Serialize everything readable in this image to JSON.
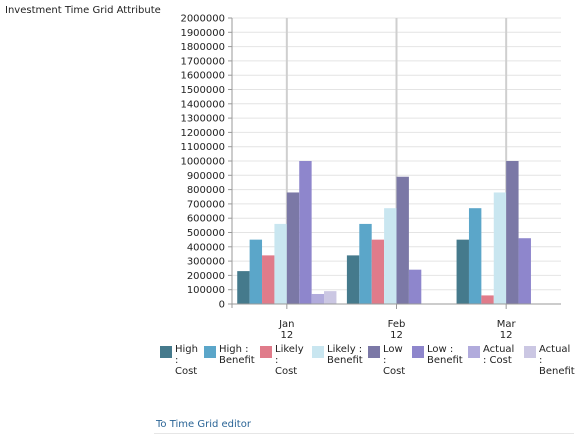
{
  "page": {
    "title": "Investment Time Grid Attribute",
    "link_label": "To Time Grid editor"
  },
  "chart_data": {
    "type": "bar",
    "categories": [
      "Jan 12",
      "Feb 12",
      "Mar 12"
    ],
    "category_labels": [
      {
        "month": "Jan",
        "year": "12"
      },
      {
        "month": "Feb",
        "year": "12"
      },
      {
        "month": "Mar",
        "year": "12"
      }
    ],
    "ylim": [
      0,
      2000000
    ],
    "ytick_step": 100000,
    "ytick_labels": [
      "0",
      "100000",
      "200000",
      "300000",
      "400000",
      "500000",
      "600000",
      "700000",
      "800000",
      "900000",
      "1000000",
      "1100000",
      "1200000",
      "1300000",
      "1400000",
      "1500000",
      "1600000",
      "1700000",
      "1800000",
      "1900000",
      "2000000"
    ],
    "grid": true,
    "legend_position": "bottom",
    "series": [
      {
        "name": "High : Cost",
        "legend_lines": [
          "High",
          ":",
          "Cost"
        ],
        "color": "#457a8c",
        "values": [
          230000,
          340000,
          450000
        ]
      },
      {
        "name": "High : Benefit",
        "legend_lines": [
          "High :",
          "Benefit"
        ],
        "color": "#5ba6c9",
        "values": [
          450000,
          560000,
          670000
        ]
      },
      {
        "name": "Likely : Cost",
        "legend_lines": [
          "Likely",
          ": Cost"
        ],
        "color": "#e07b8a",
        "values": [
          340000,
          450000,
          60000
        ]
      },
      {
        "name": "Likely : Benefit",
        "legend_lines": [
          "Likely :",
          "Benefit"
        ],
        "color": "#c9e6f0",
        "values": [
          560000,
          670000,
          780000
        ]
      },
      {
        "name": "Low : Cost",
        "legend_lines": [
          "Low",
          ":",
          "Cost"
        ],
        "color": "#7b78a6",
        "values": [
          780000,
          890000,
          1000000
        ]
      },
      {
        "name": "Low : Benefit",
        "legend_lines": [
          "Low :",
          "Benefit"
        ],
        "color": "#8e86cc",
        "values": [
          1000000,
          240000,
          460000
        ]
      },
      {
        "name": "Actual : Cost",
        "legend_lines": [
          "Actual",
          ": Cost"
        ],
        "color": "#b1abdc",
        "values": [
          70000,
          0,
          0
        ]
      },
      {
        "name": "Actual : Benefit",
        "legend_lines": [
          "Actual :",
          "Benefit"
        ],
        "color": "#cbc7e3",
        "values": [
          90000,
          0,
          0
        ]
      }
    ]
  }
}
